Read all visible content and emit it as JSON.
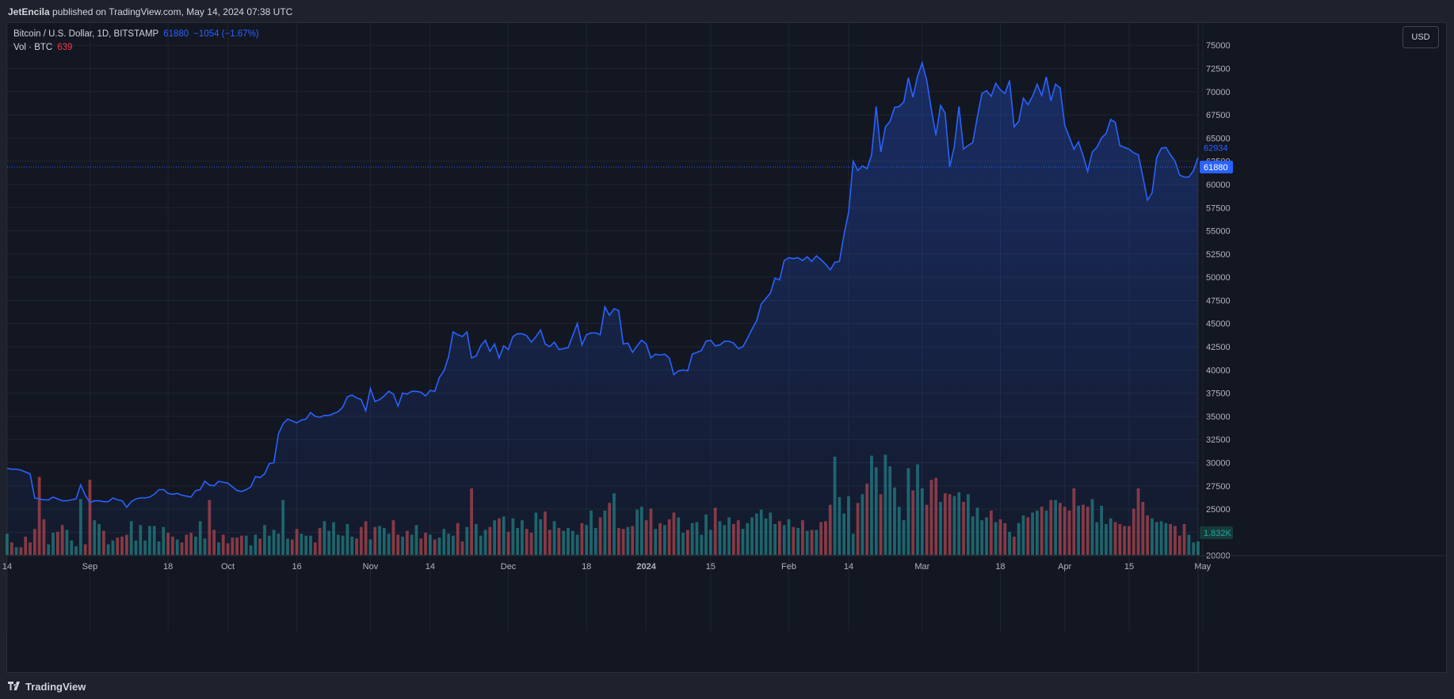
{
  "header": {
    "author": "JetEncila",
    "published_text": "published on TradingView.com, May 14, 2024 07:38 UTC"
  },
  "legend": {
    "symbol": "Bitcoin / U.S. Dollar, 1D, BITSTAMP",
    "last": "61880",
    "change": "−1054 (−1.67%)",
    "vol_label": "Vol · BTC",
    "vol_value": "639"
  },
  "currency_button": "USD",
  "footer": {
    "brand": "TradingView"
  },
  "colors": {
    "line": "#2962ff",
    "up_volume": "#26a69a",
    "down_volume": "#ef5350",
    "price_label": "#2962ff"
  },
  "price_labels": {
    "line_value": "62934",
    "current_value": "61880",
    "volume_value": "1.832K"
  },
  "chart_data": {
    "type": "line",
    "title": "Bitcoin / U.S. Dollar, 1D, BITSTAMP",
    "xlabel": "",
    "ylabel": "",
    "ylim": [
      19000,
      76500
    ],
    "y_ticks": [
      75000,
      72500,
      70000,
      67500,
      65000,
      62500,
      60000,
      57500,
      55000,
      52500,
      50000,
      47500,
      45000,
      42500,
      40000,
      37500,
      35000,
      32500,
      30000,
      27500,
      25000,
      22500,
      20000
    ],
    "x_tick_labels": [
      {
        "label": "14",
        "day": 0
      },
      {
        "label": "Sep",
        "day": 18
      },
      {
        "label": "18",
        "day": 35
      },
      {
        "label": "Oct",
        "day": 48
      },
      {
        "label": "16",
        "day": 63
      },
      {
        "label": "Nov",
        "day": 79
      },
      {
        "label": "14",
        "day": 92
      },
      {
        "label": "Dec",
        "day": 109
      },
      {
        "label": "18",
        "day": 126
      },
      {
        "label": "2024",
        "day": 139
      },
      {
        "label": "15",
        "day": 153
      },
      {
        "label": "Feb",
        "day": 170
      },
      {
        "label": "14",
        "day": 183
      },
      {
        "label": "Mar",
        "day": 199
      },
      {
        "label": "18",
        "day": 216
      },
      {
        "label": "Apr",
        "day": 230
      },
      {
        "label": "15",
        "day": 244
      },
      {
        "label": "May",
        "day": 260
      }
    ],
    "series": [
      {
        "values": [
          29400,
          29300,
          29300,
          29200,
          29000,
          28800,
          26200,
          26100,
          26000,
          26000,
          26300,
          26100,
          25900,
          25900,
          26000,
          26100,
          27600,
          26500,
          25700,
          25900,
          25900,
          25800,
          25800,
          26200,
          26000,
          25900,
          25200,
          25800,
          26100,
          26200,
          26200,
          26300,
          26600,
          27100,
          27100,
          26700,
          26600,
          26700,
          26500,
          26400,
          26300,
          27000,
          27100,
          28000,
          27600,
          27500,
          28000,
          27900,
          27800,
          27400,
          27000,
          26900,
          27100,
          27400,
          28500,
          28400,
          28800,
          29900,
          30000,
          33100,
          34200,
          34700,
          34500,
          34300,
          34600,
          34700,
          35400,
          35000,
          34900,
          35100,
          35100,
          35300,
          35500,
          36000,
          37100,
          37300,
          37000,
          36800,
          35600,
          38000,
          36600,
          36800,
          37200,
          37700,
          37400,
          36100,
          37500,
          37400,
          37700,
          37700,
          37600,
          37200,
          37800,
          37700,
          39200,
          39900,
          41400,
          44100,
          43800,
          43600,
          44100,
          41300,
          41500,
          42600,
          43200,
          42000,
          42800,
          41300,
          42600,
          42200,
          43600,
          43900,
          43900,
          43700,
          43000,
          43600,
          44300,
          42800,
          42500,
          43000,
          42200,
          42300,
          42400,
          43700,
          45000,
          42700,
          43800,
          44000,
          44000,
          43800,
          46800,
          45900,
          46600,
          46400,
          42800,
          42900,
          41900,
          42600,
          43200,
          42800,
          41300,
          41700,
          41600,
          41700,
          41300,
          39500,
          39900,
          40000,
          39900,
          41700,
          41900,
          42100,
          43100,
          43200,
          42600,
          42700,
          43100,
          43100,
          42900,
          42300,
          42500,
          43400,
          44400,
          45300,
          47100,
          47700,
          48300,
          49900,
          49700,
          51800,
          52100,
          52000,
          52100,
          51800,
          52200,
          51700,
          52300,
          51900,
          51400,
          50800,
          51600,
          51700,
          54600,
          57000,
          62500,
          61500,
          62000,
          61700,
          63200,
          68400,
          63500,
          66200,
          66800,
          68300,
          68400,
          68900,
          71500,
          69400,
          71700,
          73100,
          71200,
          68100,
          65300,
          68500,
          67700,
          61900,
          64100,
          68400,
          63800,
          64200,
          64500,
          67300,
          69800,
          70100,
          69500,
          70900,
          70200,
          69800,
          71200,
          66200,
          66800,
          69300,
          68600,
          69500,
          70800,
          69600,
          71600,
          69000,
          70800,
          70400,
          66400,
          65100,
          63800,
          64600,
          63100,
          61400,
          63500,
          64000,
          65000,
          65500,
          67000,
          66700,
          64200,
          64000,
          63800,
          63400,
          63200,
          60800,
          58300,
          59100,
          62900,
          63900,
          64000,
          63200,
          62500,
          61000,
          60800,
          60800,
          61500,
          62900
        ]
      },
      {
        "name": "Vol · BTC",
        "values": [
          2200,
          1300,
          800,
          800,
          1900,
          1300,
          2700,
          8100,
          3700,
          1100,
          2300,
          2400,
          3100,
          2600,
          1500,
          900,
          5800,
          1100,
          7800,
          3600,
          3200,
          2500,
          1100,
          1500,
          1800,
          1900,
          2100,
          3500,
          1500,
          3100,
          1500,
          3000,
          3000,
          1400,
          2900,
          2300,
          1900,
          1600,
          1300,
          2100,
          2300,
          1900,
          3500,
          1700,
          5700,
          2600,
          1300,
          2100,
          1200,
          1800,
          1800,
          2000,
          2000,
          1000,
          2100,
          1700,
          3100,
          2000,
          2600,
          2200,
          5700,
          1700,
          1600,
          2700,
          2200,
          2000,
          2000,
          1300,
          2800,
          3500,
          2500,
          3400,
          2100,
          2000,
          3200,
          1900,
          1700,
          2900,
          3500,
          1600,
          2900,
          3000,
          2800,
          2200,
          3600,
          2100,
          1900,
          2500,
          2100,
          3100,
          1700,
          2300,
          2100,
          1600,
          1800,
          2700,
          2200,
          2000,
          3300,
          1400,
          2900,
          6900,
          3200,
          2000,
          2600,
          2900,
          3600,
          3800,
          4000,
          2400,
          3800,
          2800,
          3600,
          2700,
          2300,
          4400,
          3700,
          4500,
          2600,
          3500,
          2800,
          2500,
          2800,
          2500,
          2100,
          3300,
          3100,
          4600,
          2800,
          3900,
          4600,
          5400,
          6400,
          2800,
          2700,
          2900,
          3000,
          4700,
          5000,
          3600,
          4800,
          2700,
          3300,
          3100,
          3700,
          4400,
          3900,
          2300,
          2600,
          3300,
          3400,
          2100,
          4200,
          2600,
          4900,
          3500,
          3100,
          3900,
          3200,
          3600,
          2700,
          3300,
          3900,
          4300,
          4700,
          3800,
          4400,
          3200,
          3500,
          3100,
          3700,
          2900,
          2800,
          3600,
          2500,
          2600,
          2600,
          3400,
          3500,
          5200,
          10200,
          6000,
          4300,
          6100,
          2200,
          5400,
          6300,
          7400,
          10300,
          9100,
          6300,
          10400,
          9200,
          7000,
          5000,
          3600,
          9000,
          6700,
          9400,
          6900,
          5200,
          7800,
          8000,
          5500,
          6400,
          6300,
          6100,
          6500,
          5500,
          6300,
          4000,
          4900,
          3600,
          3900,
          4600,
          3400,
          3700,
          3300,
          2400,
          1900,
          3300,
          4100,
          3900,
          4400,
          4600,
          5000,
          4600,
          5700,
          5700,
          5400,
          5000,
          4600,
          6900,
          5100,
          5200,
          5000,
          5800,
          3400,
          5100,
          3200,
          3800,
          3400,
          3200,
          3000,
          3000,
          4800,
          6900,
          5500,
          4100,
          3800,
          3400,
          3500,
          3300,
          3200,
          3000,
          2000,
          3200,
          2100,
          1300,
          1400
        ]
      }
    ]
  }
}
